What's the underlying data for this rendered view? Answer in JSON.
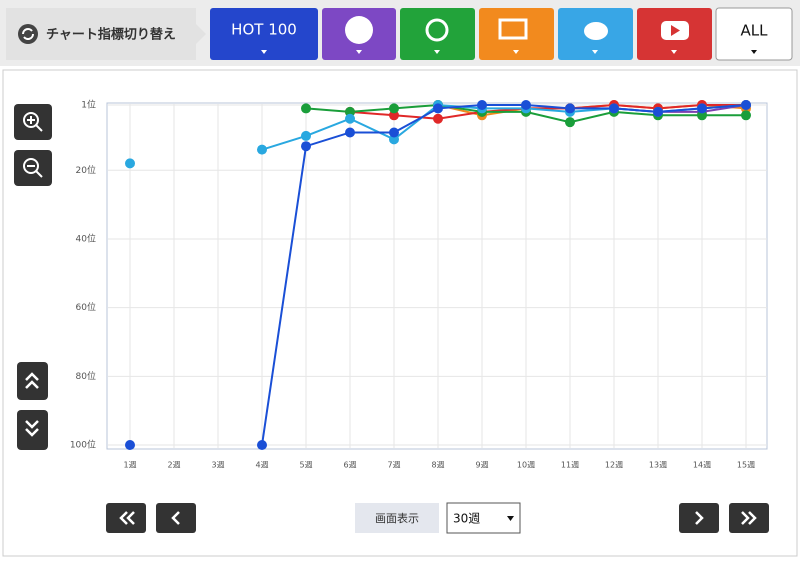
{
  "toolbar": {
    "label": "チャート指標切り替え",
    "tabs": [
      "HOT 100",
      "ALL"
    ]
  },
  "chart_data": {
    "type": "line",
    "categories": [
      "1週",
      "2週",
      "3週",
      "4週",
      "5週",
      "6週",
      "7週",
      "8週",
      "9週",
      "10週",
      "11週",
      "12週",
      "13週",
      "14週",
      "15週"
    ],
    "ylim": [
      100,
      1
    ],
    "yticks": [
      {
        "value": 1,
        "label": "1位"
      },
      {
        "value": 20,
        "label": "20位"
      },
      {
        "value": 40,
        "label": "40位"
      },
      {
        "value": 60,
        "label": "60位"
      },
      {
        "value": 80,
        "label": "80位"
      },
      {
        "value": 100,
        "label": "100位"
      }
    ],
    "grid": true,
    "series": [
      {
        "color": "#f08a1c",
        "values": [
          null,
          null,
          null,
          null,
          null,
          null,
          null,
          1,
          4,
          2,
          2,
          1,
          2,
          1,
          2
        ]
      },
      {
        "color": "#7b3fb0",
        "values": [
          null,
          null,
          null,
          null,
          null,
          null,
          null,
          null,
          null,
          null,
          null,
          2,
          3,
          3,
          1
        ]
      },
      {
        "color": "#e02828",
        "values": [
          null,
          null,
          null,
          null,
          null,
          3,
          4,
          5,
          3,
          2,
          2,
          1,
          2,
          1,
          1
        ]
      },
      {
        "color": "#1a9e3a",
        "values": [
          null,
          null,
          null,
          null,
          2,
          3,
          2,
          1,
          3,
          3,
          6,
          3,
          4,
          4,
          4
        ]
      },
      {
        "color": "#29a8e0",
        "values": [
          18,
          null,
          null,
          14,
          10,
          5,
          11,
          1,
          2,
          2,
          3,
          2,
          3,
          2,
          1
        ]
      },
      {
        "color": "#1a4fd6",
        "values": [
          100,
          null,
          null,
          100,
          13,
          9,
          9,
          2,
          1,
          1,
          2,
          2,
          3,
          2,
          1
        ]
      }
    ]
  },
  "controls": {
    "display_label": "画面表示",
    "select": "30週"
  }
}
